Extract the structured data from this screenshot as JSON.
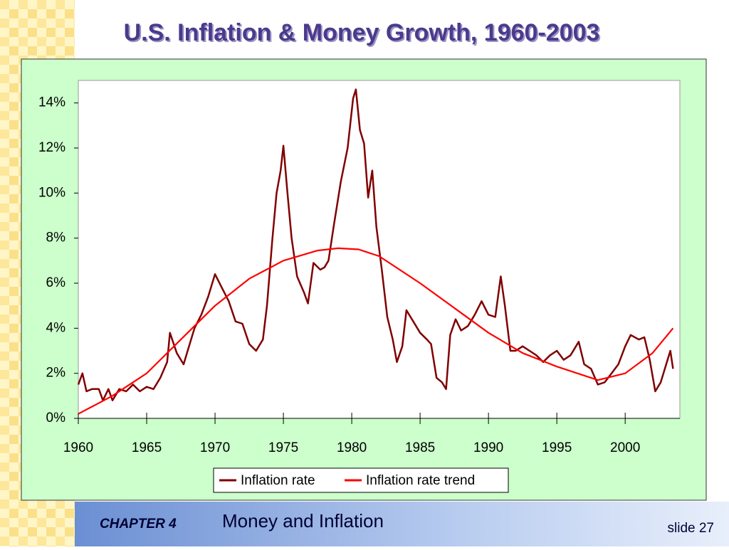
{
  "chart_data": {
    "type": "line",
    "title": "U.S. Inflation & Money Growth, 1960-2003",
    "xlim": [
      1960,
      2004
    ],
    "xticks": [
      1960,
      1965,
      1970,
      1975,
      1980,
      1985,
      1990,
      1995,
      2000
    ],
    "ylim": [
      0,
      15
    ],
    "yticks": [
      {
        "value": 0,
        "label": "0%"
      },
      {
        "value": 2,
        "label": "2%"
      },
      {
        "value": 4,
        "label": "4%"
      },
      {
        "value": 6,
        "label": "6%"
      },
      {
        "value": 8,
        "label": "8%"
      },
      {
        "value": 10,
        "label": "10%"
      },
      {
        "value": 12,
        "label": "12%"
      },
      {
        "value": 14,
        "label": "14%"
      }
    ],
    "grid": false,
    "legend": "bottom",
    "series": [
      {
        "name": "Inflation rate",
        "color": "#800000",
        "x": [
          1960.0,
          1960.3,
          1960.6,
          1961.0,
          1961.5,
          1961.8,
          1962.2,
          1962.5,
          1963.0,
          1963.5,
          1964.0,
          1964.5,
          1965.0,
          1965.5,
          1966.0,
          1966.5,
          1966.7,
          1967.2,
          1967.7,
          1968.0,
          1968.5,
          1969.0,
          1969.5,
          1970.0,
          1970.5,
          1971.0,
          1971.5,
          1972.0,
          1972.5,
          1973.0,
          1973.5,
          1973.8,
          1974.2,
          1974.5,
          1974.8,
          1975.0,
          1975.3,
          1975.6,
          1976.0,
          1976.5,
          1976.8,
          1977.2,
          1977.7,
          1978.0,
          1978.3,
          1978.7,
          1979.2,
          1979.7,
          1980.1,
          1980.3,
          1980.6,
          1980.9,
          1981.2,
          1981.5,
          1981.8,
          1982.2,
          1982.6,
          1983.0,
          1983.3,
          1983.7,
          1984.0,
          1984.5,
          1985.0,
          1985.5,
          1985.8,
          1986.2,
          1986.6,
          1986.9,
          1987.2,
          1987.6,
          1988.0,
          1988.5,
          1989.0,
          1989.5,
          1990.0,
          1990.5,
          1990.9,
          1991.2,
          1991.6,
          1992.0,
          1992.5,
          1993.0,
          1993.5,
          1994.0,
          1994.5,
          1995.0,
          1995.5,
          1996.0,
          1996.6,
          1997.0,
          1997.5,
          1998.0,
          1998.5,
          1999.0,
          1999.5,
          2000.0,
          2000.4,
          2001.0,
          2001.4,
          2001.8,
          2002.2,
          2002.6,
          2003.0,
          2003.3,
          2003.5
        ],
        "values": [
          1.5,
          2.0,
          1.2,
          1.3,
          1.3,
          0.8,
          1.3,
          0.8,
          1.3,
          1.2,
          1.5,
          1.2,
          1.4,
          1.3,
          1.8,
          2.5,
          3.8,
          2.9,
          2.4,
          3.0,
          4.0,
          4.6,
          5.4,
          6.4,
          5.8,
          5.2,
          4.3,
          4.2,
          3.3,
          3.0,
          3.5,
          5.0,
          8.0,
          10.0,
          11.0,
          12.1,
          10.0,
          8.0,
          6.3,
          5.6,
          5.1,
          6.9,
          6.6,
          6.7,
          7.0,
          8.6,
          10.5,
          12.0,
          14.2,
          14.6,
          12.8,
          12.2,
          9.8,
          11.0,
          8.5,
          6.6,
          4.5,
          3.5,
          2.5,
          3.2,
          4.8,
          4.3,
          3.8,
          3.5,
          3.3,
          1.8,
          1.6,
          1.3,
          3.7,
          4.4,
          3.9,
          4.1,
          4.6,
          5.2,
          4.6,
          4.5,
          6.3,
          5.0,
          3.0,
          3.0,
          3.2,
          3.0,
          2.8,
          2.5,
          2.8,
          3.0,
          2.6,
          2.8,
          3.4,
          2.4,
          2.2,
          1.5,
          1.6,
          2.0,
          2.4,
          3.2,
          3.7,
          3.5,
          3.6,
          2.6,
          1.2,
          1.6,
          2.4,
          3.0,
          2.2
        ]
      },
      {
        "name": "Inflation rate trend",
        "color": "#ff0000",
        "x": [
          1960.0,
          1962.5,
          1965.0,
          1967.5,
          1970.0,
          1972.5,
          1975.0,
          1977.5,
          1979.0,
          1980.5,
          1982.0,
          1985.0,
          1987.5,
          1990.0,
          1992.5,
          1995.0,
          1998.0,
          2000.0,
          2002.0,
          2003.5
        ],
        "values": [
          0.2,
          1.0,
          2.0,
          3.5,
          5.0,
          6.2,
          7.0,
          7.45,
          7.55,
          7.5,
          7.2,
          6.0,
          4.9,
          3.8,
          2.9,
          2.3,
          1.7,
          2.0,
          2.9,
          4.0
        ]
      }
    ]
  },
  "footer": {
    "chapter": "CHAPTER 4",
    "topic": "Money and Inflation",
    "slide": "slide 27"
  }
}
